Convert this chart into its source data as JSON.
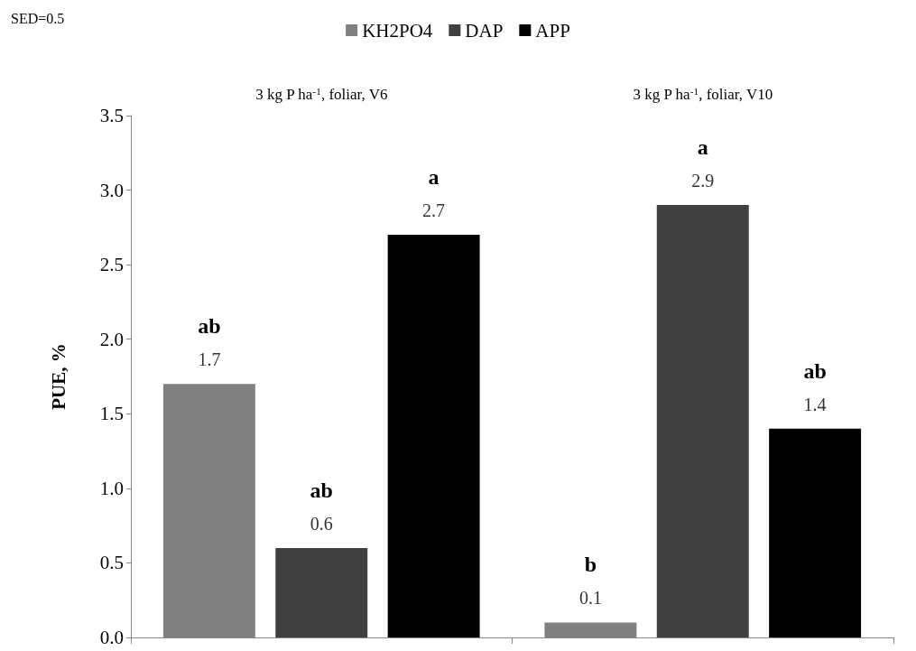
{
  "chart_data": {
    "type": "bar",
    "categories": [
      "3 kg P ha$^{-1}$, foliar, V6",
      "3 kg P ha$^{-1}$, foliar, V10"
    ],
    "series": [
      {
        "name": "KH2PO4",
        "color": "#808080",
        "values": [
          1.7,
          0.1
        ],
        "value_labels": [
          "ab\n1.7",
          "b\n0.1"
        ]
      },
      {
        "name": "DAP",
        "color": "#404040",
        "values": [
          0.6,
          2.9
        ],
        "value_labels": [
          "ab\n0.6",
          "a\n2.9"
        ]
      },
      {
        "name": "APP",
        "color": "#000000",
        "values": [
          2.7,
          1.4
        ],
        "value_labels": [
          "a\n2.7",
          "ab\n1.4"
        ]
      }
    ],
    "ylabel": "PUE, %",
    "ylim": [
      0,
      3.5
    ],
    "yticks": [
      {
        "value": 0,
        "label": "0.0"
      },
      {
        "value": 0.5,
        "label": "0.5"
      },
      {
        "value": 1,
        "label": "1.0"
      },
      {
        "value": 1.5,
        "label": "1.5"
      },
      {
        "value": 2,
        "label": "2.0"
      },
      {
        "value": 2.5,
        "label": "2.5"
      },
      {
        "value": 3,
        "label": "3.0"
      },
      {
        "value": 3.5,
        "label": "3.5"
      }
    ],
    "grid": false,
    "legend": "top",
    "annotations": [
      "SED=0.5"
    ]
  }
}
